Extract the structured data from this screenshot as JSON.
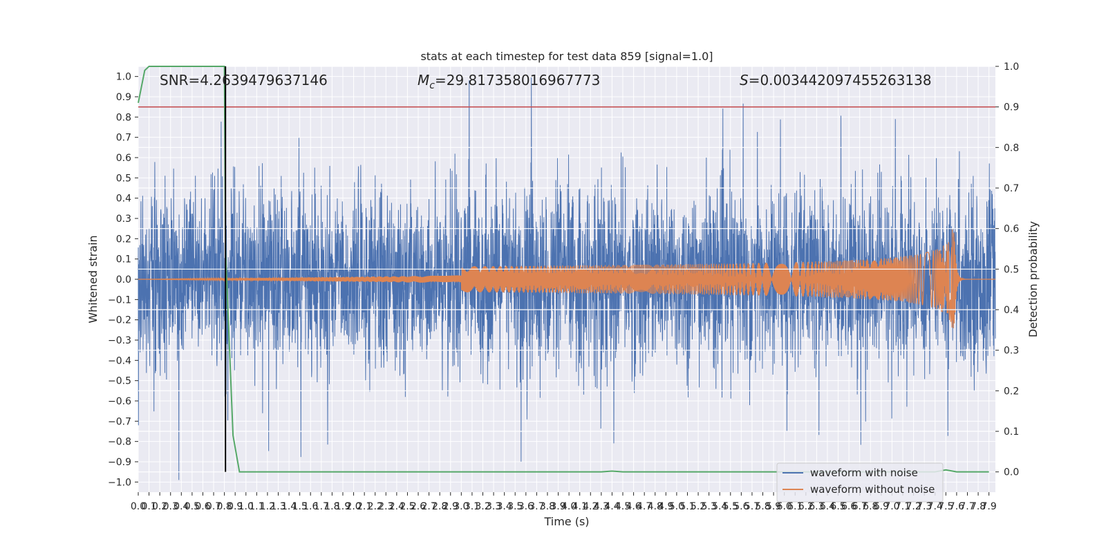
{
  "chart_data": {
    "type": "line",
    "title": "stats at each timestep for test data 859 [signal=1.0]",
    "xlabel": "Time (s)",
    "ylabel_left": "Whitened strain",
    "ylabel_right": "Detection probability",
    "xlim": [
      0.0,
      7.96
    ],
    "ylim_left": [
      -1.05,
      1.05
    ],
    "ylim_right": [
      -0.05,
      1.0
    ],
    "x_ticks": [
      "0.0",
      "0.1",
      "0.2",
      "0.3",
      "0.4",
      "0.5",
      "0.6",
      "0.7",
      "0.8",
      "0.9",
      "1.0",
      "1.1",
      "1.2",
      "1.3",
      "1.4",
      "1.5",
      "1.6",
      "1.7",
      "1.8",
      "1.9",
      "2.0",
      "2.1",
      "2.2",
      "2.3",
      "2.4",
      "2.5",
      "2.6",
      "2.7",
      "2.8",
      "2.9",
      "3.0",
      "3.1",
      "3.2",
      "3.3",
      "3.4",
      "3.5",
      "3.6",
      "3.7",
      "3.8",
      "3.9",
      "4.0",
      "4.1",
      "4.2",
      "4.3",
      "4.4",
      "4.5",
      "4.6",
      "4.7",
      "4.8",
      "4.9",
      "5.0",
      "5.1",
      "5.2",
      "5.3",
      "5.4",
      "5.5",
      "5.6",
      "5.7",
      "5.8",
      "5.9",
      "6.0",
      "6.1",
      "6.2",
      "6.3",
      "6.4",
      "6.5",
      "6.6",
      "6.7",
      "6.8",
      "6.9",
      "7.0",
      "7.1",
      "7.2",
      "7.3",
      "7.4",
      "7.5",
      "7.6",
      "7.7",
      "7.8",
      "7.9"
    ],
    "y_ticks_left": [
      "1.0",
      "0.9",
      "0.8",
      "0.7",
      "0.6",
      "0.5",
      "0.4",
      "0.3",
      "0.2",
      "0.1",
      "0.0",
      "−0.1",
      "−0.2",
      "−0.3",
      "−0.4",
      "−0.5",
      "−0.6",
      "−0.7",
      "−0.8",
      "−0.9",
      "−1.0"
    ],
    "y_ticks_right": [
      "1.0",
      "0.9",
      "0.8",
      "0.7",
      "0.6",
      "0.5",
      "0.4",
      "0.3",
      "0.2",
      "0.1",
      "0.0"
    ],
    "annotations": {
      "snr": "SNR=4.2639479637146",
      "mc_symbol": "M",
      "mc_sub": "c",
      "mc_value": "=29.817358016967773",
      "s_symbol": "S",
      "s_value": "=0.003442097455263138"
    },
    "series": [
      {
        "name": "waveform with noise",
        "color": "#4c72b0",
        "axis": "left",
        "description": "dense noise band, mostly between about -0.55 and 0.65 with spikes up to 1.0 and down to -0.94"
      },
      {
        "name": "waveform without noise",
        "color": "#dd8452",
        "axis": "left",
        "description": "chirp near zero growing in amplitude, peaking around t=7.55 s at about +/-0.25"
      },
      {
        "name": "detection probability",
        "color": "#55a868",
        "axis": "right",
        "x": [
          0.0,
          0.06,
          0.1,
          0.2,
          0.8,
          0.81,
          0.88,
          0.94,
          4.3,
          4.4,
          4.5,
          7.4,
          7.5,
          7.6,
          7.9
        ],
        "y": [
          0.91,
          0.99,
          1.0,
          1.0,
          1.0,
          0.55,
          0.09,
          0.0,
          0.0,
          0.002,
          0.0,
          0.0,
          0.005,
          0.0,
          0.0
        ]
      }
    ],
    "threshold": {
      "axis": "right",
      "y": 0.9,
      "color": "#c44e52"
    },
    "marker_line": {
      "x": 0.81,
      "color": "#000000"
    },
    "legend_placement": "bottom-right",
    "grid": true
  }
}
